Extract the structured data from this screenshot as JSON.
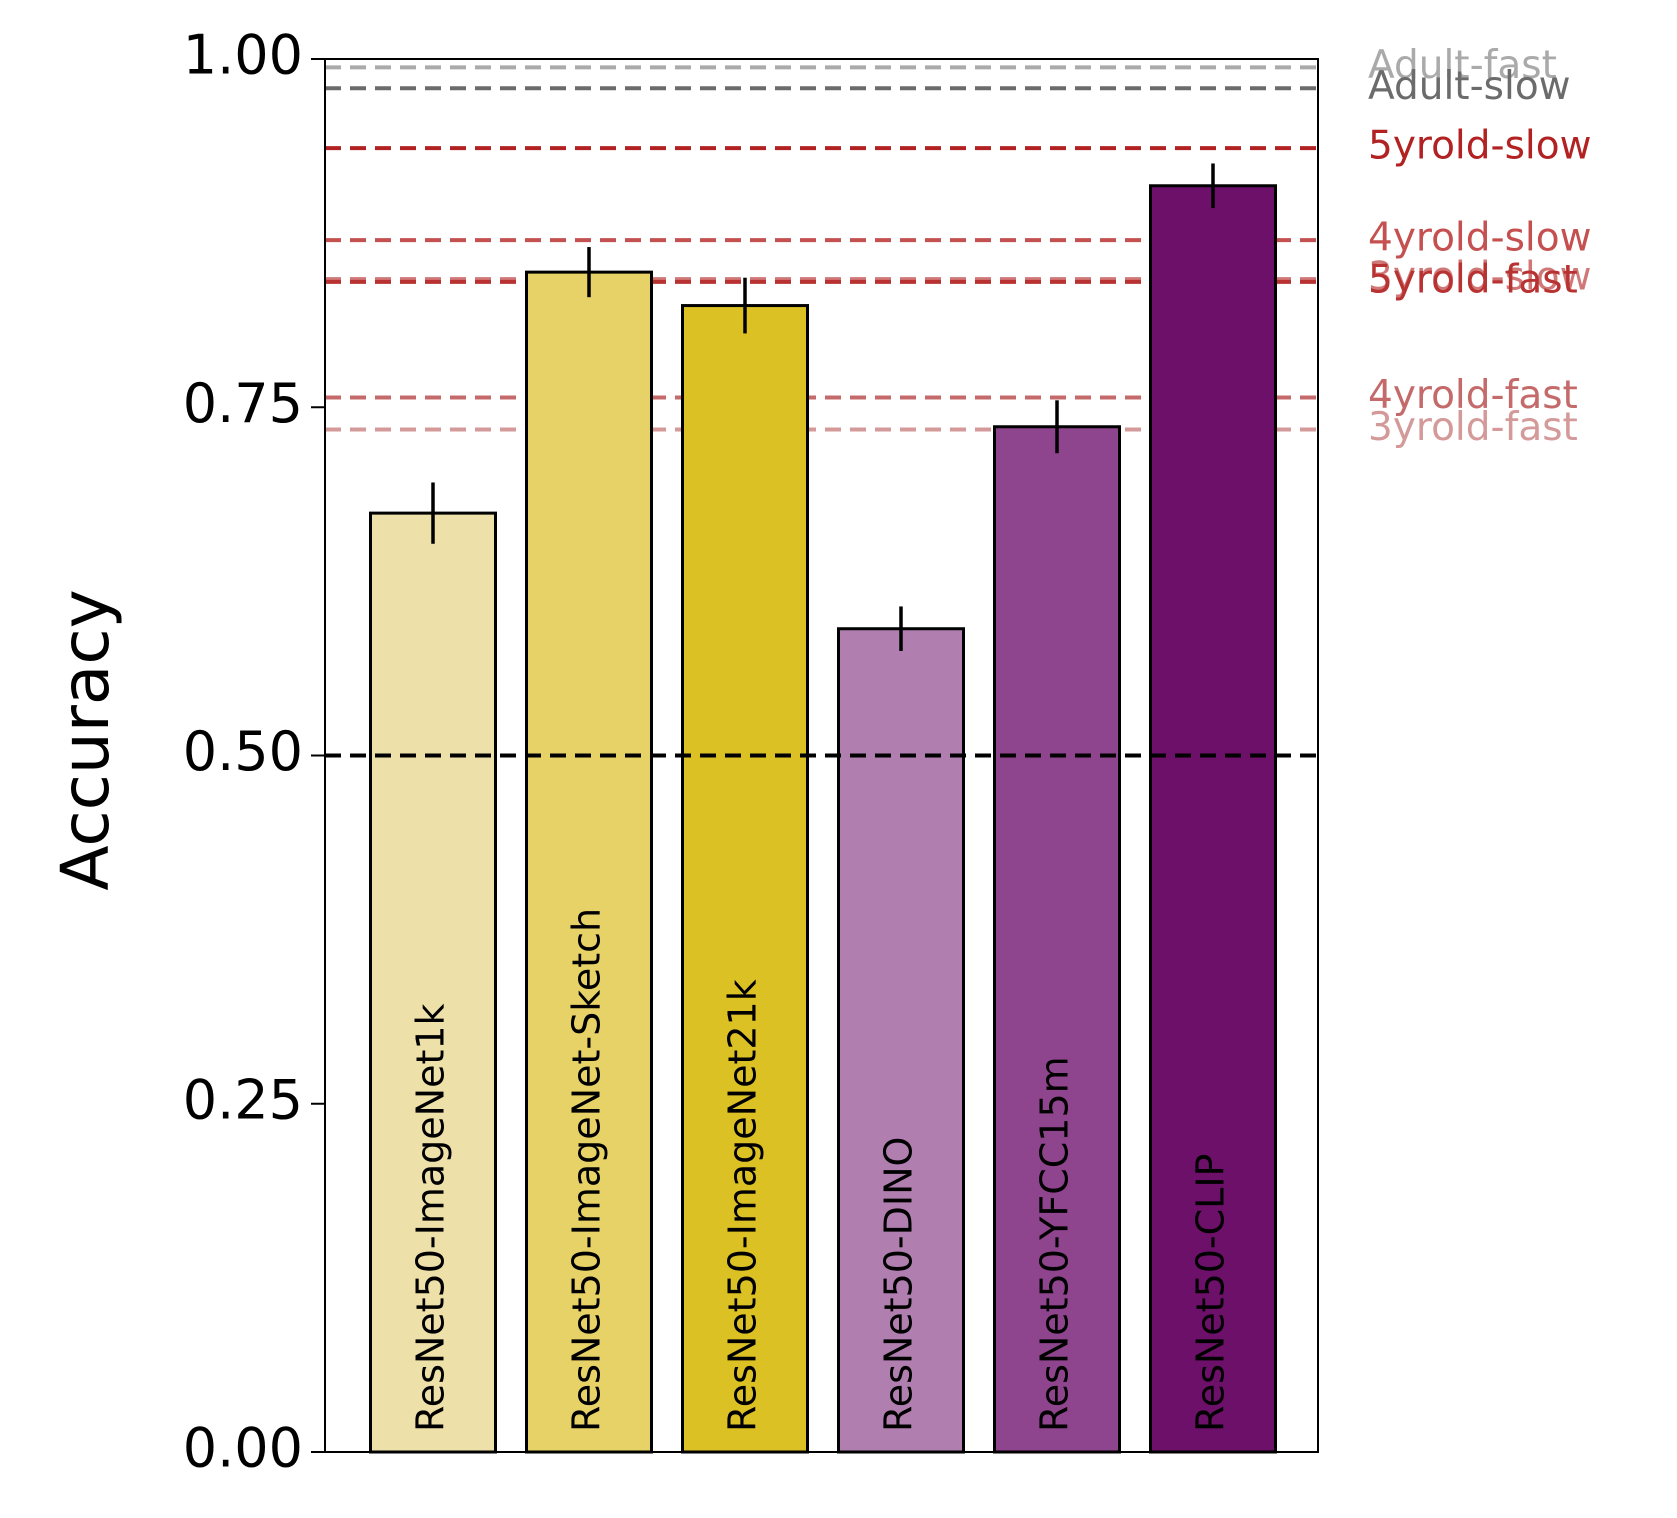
{
  "chart_data": {
    "type": "bar",
    "ylabel": "Accuracy",
    "ylim": [
      0,
      1
    ],
    "yticks": [
      "0.00",
      "0.25",
      "0.50",
      "0.75",
      "1.00"
    ],
    "categories": [
      "ResNet50-ImageNet1k",
      "ResNet50-ImageNet-Sketch",
      "ResNet50-ImageNet21k",
      "ResNet50-DINO",
      "ResNet50-YFCC15m",
      "ResNet50-CLIP"
    ],
    "values": [
      0.674,
      0.847,
      0.823,
      0.591,
      0.736,
      0.909
    ],
    "errors": [
      0.022,
      0.018,
      0.02,
      0.016,
      0.019,
      0.016
    ],
    "bar_colors": [
      "#ede0a8",
      "#e6d266",
      "#dcc124",
      "#b07fb0",
      "#8e458d",
      "#6d1069"
    ],
    "chance_line": {
      "value": 0.5,
      "color": "#000000"
    },
    "reference_lines": [
      {
        "name": "Adult-fast",
        "value": 0.994,
        "color": "#aaaaaa"
      },
      {
        "name": "Adult-slow",
        "value": 0.979,
        "color": "#6b6b6b"
      },
      {
        "name": "5yrold-slow",
        "value": 0.936,
        "color": "#b22222"
      },
      {
        "name": "4yrold-slow",
        "value": 0.87,
        "color": "#c45050"
      },
      {
        "name": "3yrold-slow",
        "value": 0.842,
        "color": "#d07878"
      },
      {
        "name": "5yrold-fast",
        "value": 0.84,
        "color": "#b83232"
      },
      {
        "name": "4yrold-fast",
        "value": 0.757,
        "color": "#c46a6a"
      },
      {
        "name": "3yrold-fast",
        "value": 0.734,
        "color": "#d49a9a"
      }
    ],
    "grid": false,
    "legend": "none"
  }
}
